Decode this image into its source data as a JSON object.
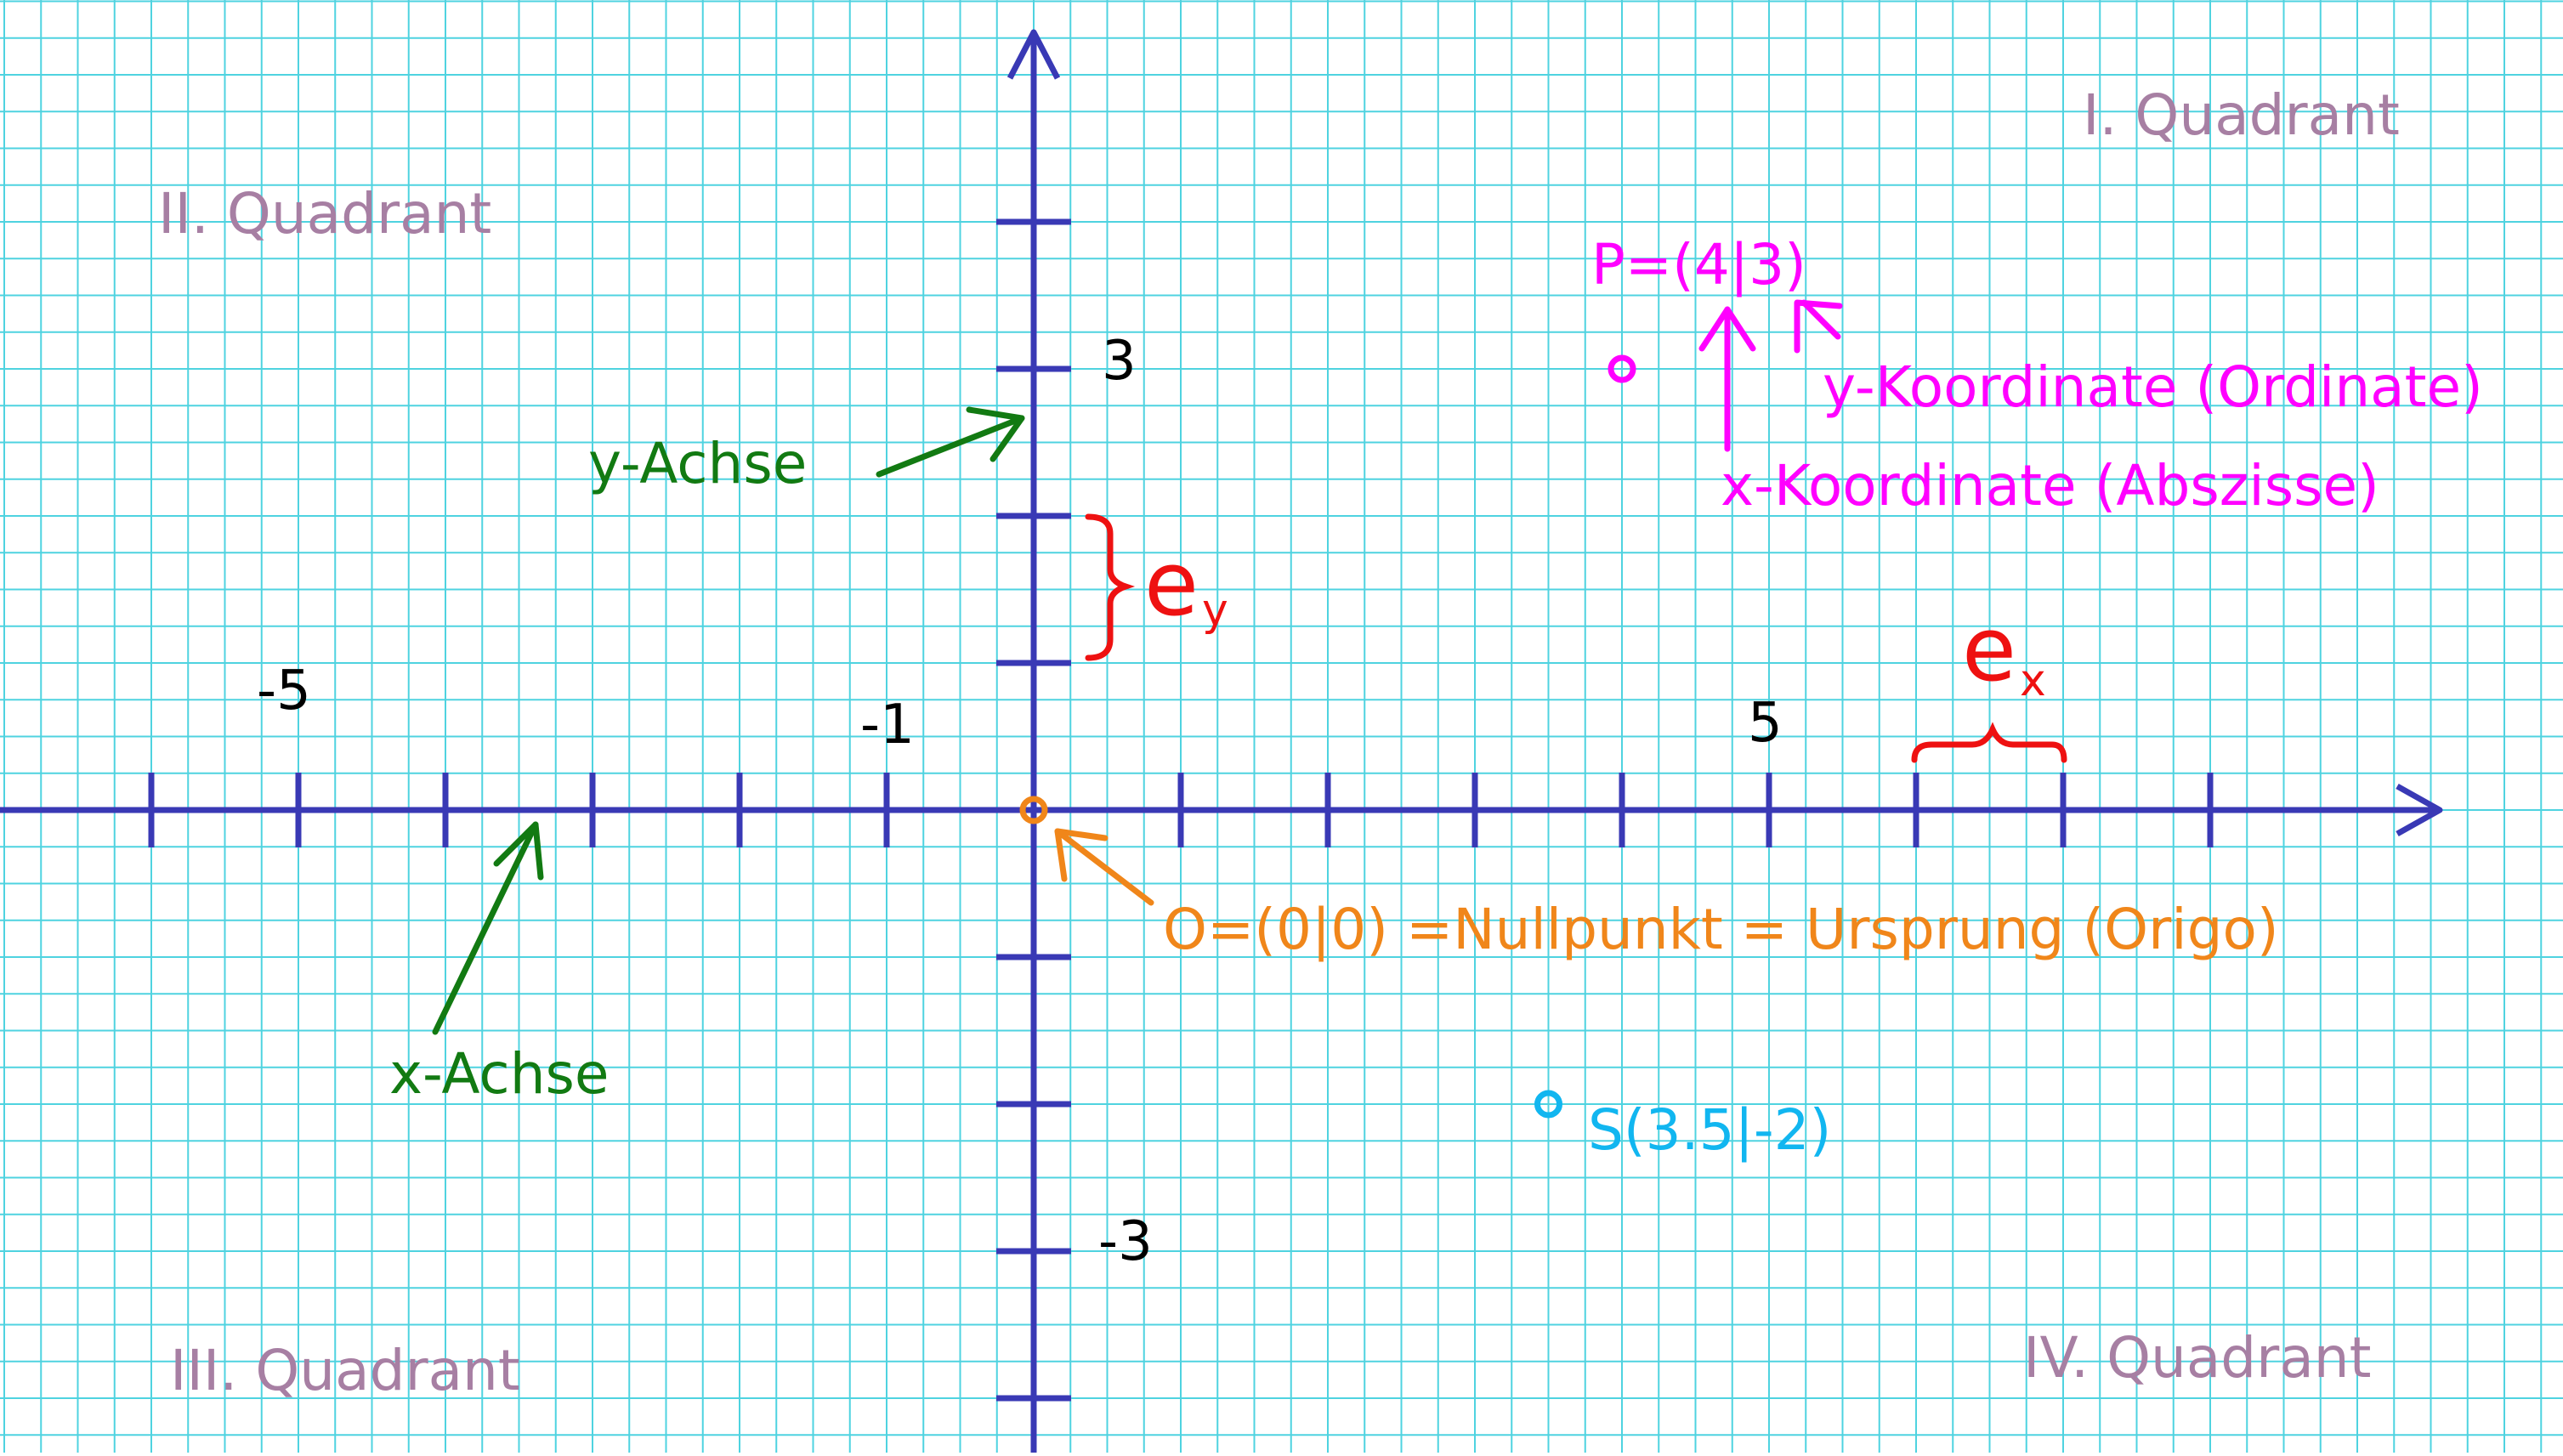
{
  "quadrants": {
    "q1": "I. Quadrant",
    "q2": "II. Quadrant",
    "q3": "III. Quadrant",
    "q4": "IV. Quadrant"
  },
  "ticks": {
    "x_neg5": "-5",
    "x_neg1": "-1",
    "x_5": "5",
    "y_3": "3",
    "y_neg3": "-3"
  },
  "axes": {
    "x_label": "x-Achse",
    "y_label": "y-Achse"
  },
  "units": {
    "ex_base": "e",
    "ex_sub": "x",
    "ey_base": "e",
    "ey_sub": "y"
  },
  "points": {
    "P": {
      "label": "P=(4|3)",
      "x": 4,
      "y": 3
    },
    "S": {
      "label": "S(3.5|-2)",
      "x": 3.5,
      "y": -2
    },
    "O": {
      "label": "O=(0|0) =Nullpunkt = Ursprung (Origo)",
      "x": 0,
      "y": 0
    }
  },
  "annotations": {
    "x_coord": "x-Koordinate (Abszisse)",
    "y_coord": "y-Koordinate (Ordinate)"
  },
  "colors": {
    "grid": "#4fd3e0",
    "axis": "#3939b5",
    "quadrant": "#a77fa3",
    "axis_label": "#127a12",
    "unit": "#ee1111",
    "point_P": "#ff00ff",
    "point_S": "#11b6f0",
    "origin": "#f0861a",
    "tick_text": "#000000"
  }
}
